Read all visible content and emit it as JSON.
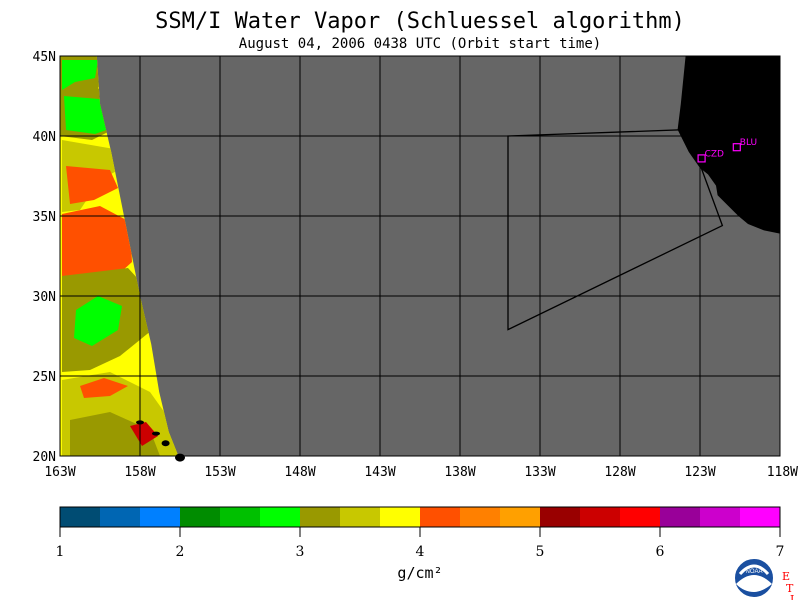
{
  "title": "SSM/I Water Vapor (Schluessel algorithm)",
  "subtitle": "August 04, 2006  0438 UTC  (Orbit start time)",
  "map": {
    "lon_range": [
      -163,
      -118
    ],
    "lat_range": [
      20,
      45
    ],
    "lat_ticks": [
      {
        "value": 45,
        "label": "45N"
      },
      {
        "value": 40,
        "label": "40N"
      },
      {
        "value": 35,
        "label": "35N"
      },
      {
        "value": 30,
        "label": "30N"
      },
      {
        "value": 25,
        "label": "25N"
      },
      {
        "value": 20,
        "label": "20N"
      }
    ],
    "lon_ticks": [
      {
        "value": -163,
        "label": "163W"
      },
      {
        "value": -158,
        "label": "158W"
      },
      {
        "value": -153,
        "label": "153W"
      },
      {
        "value": -148,
        "label": "148W"
      },
      {
        "value": -143,
        "label": "143W"
      },
      {
        "value": -138,
        "label": "138W"
      },
      {
        "value": -133,
        "label": "133W"
      },
      {
        "value": -128,
        "label": "128W"
      },
      {
        "value": -123,
        "label": "123W"
      },
      {
        "value": -118,
        "label": "118W"
      }
    ],
    "no_data_color": "#666666",
    "land_color": "#000000",
    "grid": true,
    "stations": [
      {
        "id": "CZD",
        "lon": -122.9,
        "lat": 38.6,
        "color": "#ff00ff"
      },
      {
        "id": "BLU",
        "lon": -120.7,
        "lat": 39.3,
        "color": "#ff00ff"
      }
    ],
    "swath_edge": [
      [
        -163,
        45
      ],
      [
        -160.7,
        45
      ],
      [
        -160.5,
        42
      ],
      [
        -159.8,
        39
      ],
      [
        -159.2,
        36
      ],
      [
        -158.6,
        33
      ],
      [
        -158.0,
        30
      ],
      [
        -157.3,
        27
      ],
      [
        -156.8,
        24
      ],
      [
        -156.2,
        21.5
      ],
      [
        -155.6,
        20
      ]
    ],
    "outline": [
      [
        -135,
        40
      ],
      [
        -123.8,
        40.4
      ],
      [
        -121.6,
        34.4
      ],
      [
        -135,
        27.9
      ]
    ]
  },
  "colorbar": {
    "ticks": [
      "1",
      "2",
      "3",
      "4",
      "5",
      "6",
      "7"
    ],
    "unit": "g/cm²",
    "range": [
      1,
      7
    ],
    "colors": [
      "#004c73",
      "#0066b3",
      "#0080ff",
      "#008c00",
      "#00c000",
      "#00ff00",
      "#999900",
      "#c8c800",
      "#ffff00",
      "#ff5000",
      "#ff8000",
      "#ffa000",
      "#990000",
      "#cc0000",
      "#ff0000",
      "#990099",
      "#cc00cc",
      "#ff00ff"
    ]
  },
  "logo": {
    "text": "NOAA",
    "etl": [
      "E",
      "T",
      "L"
    ]
  }
}
